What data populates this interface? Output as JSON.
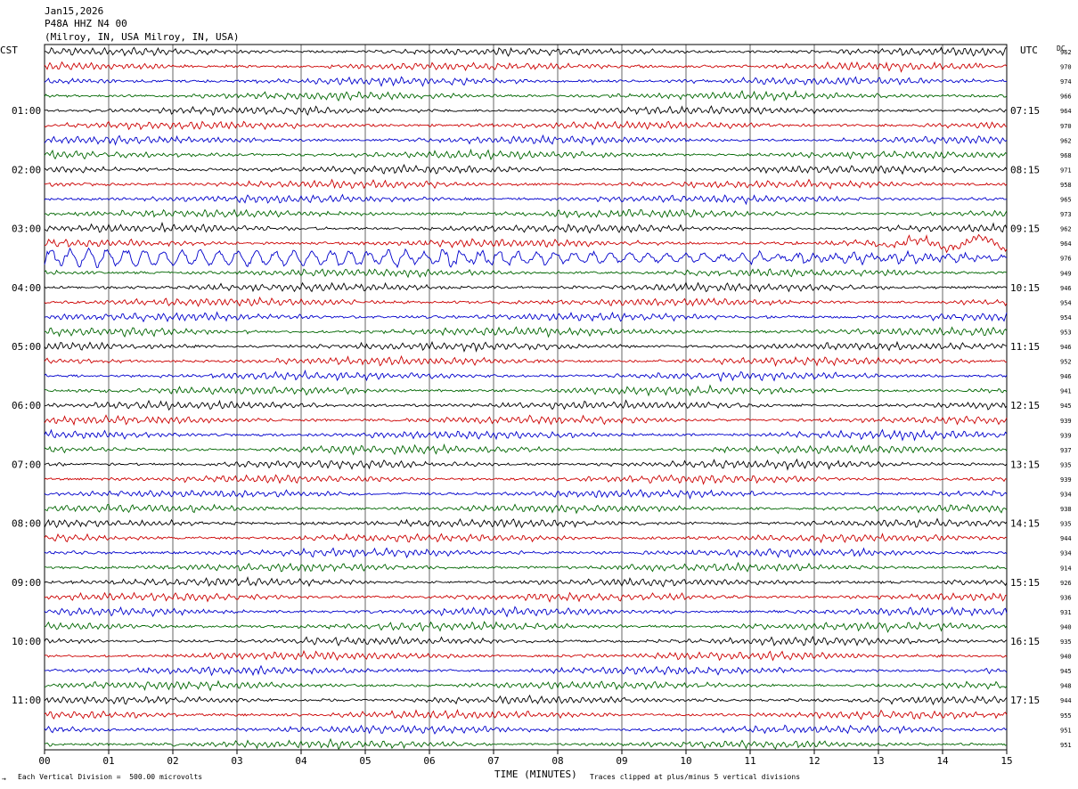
{
  "header": {
    "date": "Jan15,2026",
    "station": "P48A HHZ N4 00",
    "location": "(Milroy, IN, USA Milroy, IN, USA)"
  },
  "left_axis_title": "CST",
  "right_axis_title": "UTC",
  "dc_title": "DC",
  "footer": {
    "vertical_division": "Each Vertical Division =  500.00 microvolts",
    "clip_note": "Traces clipped at plus/minus 5 vertical divisions",
    "corner_mark": "→"
  },
  "chart_data": {
    "type": "line",
    "title": "",
    "xlabel": "TIME (MINUTES)",
    "x_ticks": [
      "00",
      "01",
      "02",
      "03",
      "04",
      "05",
      "06",
      "07",
      "08",
      "09",
      "10",
      "11",
      "12",
      "13",
      "14",
      "15"
    ],
    "xlim": [
      0,
      15
    ],
    "grid": true,
    "trace_colors": [
      "#000000",
      "#cc0000",
      "#0000cc",
      "#006600"
    ],
    "left_time_labels": [
      "01:00",
      "02:00",
      "03:00",
      "04:00",
      "05:00",
      "06:00",
      "07:00",
      "08:00",
      "09:00",
      "10:00",
      "11:00"
    ],
    "right_time_labels": [
      "07:15",
      "08:15",
      "09:15",
      "10:15",
      "11:15",
      "12:15",
      "13:15",
      "14:15",
      "15:15",
      "16:15",
      "17:15"
    ],
    "dc_offsets": [
      "962",
      "970",
      "974",
      "966",
      "964",
      "970",
      "962",
      "968",
      "971",
      "958",
      "965",
      "973",
      "962",
      "964",
      "976",
      "949",
      "946",
      "954",
      "954",
      "953",
      "946",
      "952",
      "946",
      "941",
      "945",
      "939",
      "939",
      "937",
      "935",
      "939",
      "934",
      "938",
      "935",
      "944",
      "934",
      "914",
      "926",
      "936",
      "931",
      "940",
      "935",
      "940",
      "945",
      "948",
      "944",
      "955",
      "951",
      "951"
    ],
    "traces_per_hour": 4,
    "trace_count": 48,
    "event_traces": [
      13,
      14
    ]
  }
}
